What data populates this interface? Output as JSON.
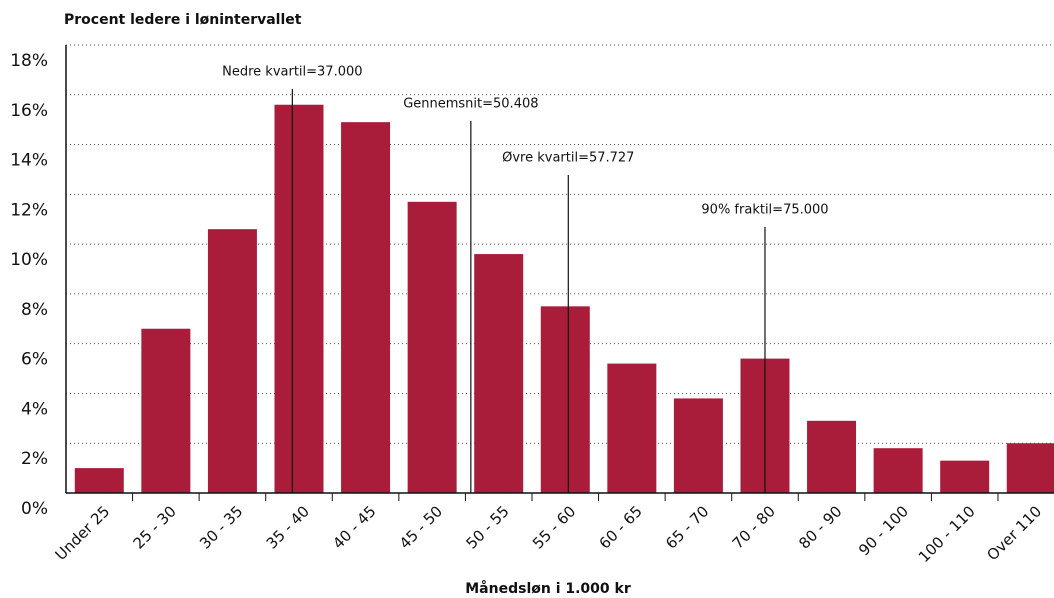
{
  "chart_data": {
    "type": "bar",
    "title": "Procent ledere i lønintervallet",
    "xlabel": "Månedsløn i  1.000 kr",
    "categories": [
      "Under 25",
      "25 - 30",
      "30 - 35",
      "35 - 40",
      "40 - 45",
      "45 - 50",
      "50 - 55",
      "55 - 60",
      "60 - 65",
      "65 - 70",
      "70 - 80",
      "80 - 90",
      "90 - 100",
      "100 - 110",
      "Over 110"
    ],
    "values": [
      1.0,
      6.6,
      10.6,
      15.6,
      14.9,
      11.7,
      9.6,
      7.5,
      5.2,
      3.8,
      5.4,
      2.9,
      1.8,
      1.3,
      2.0
    ],
    "color": "#a91d3a",
    "ylim": [
      0,
      18
    ],
    "yticks": [
      {
        "value": 0,
        "label": "0%"
      },
      {
        "value": 2,
        "label": "2%"
      },
      {
        "value": 4,
        "label": "4%"
      },
      {
        "value": 6,
        "label": "6%"
      },
      {
        "value": 8,
        "label": "8%"
      },
      {
        "value": 10,
        "label": "10%"
      },
      {
        "value": 12,
        "label": "12%"
      },
      {
        "value": 14,
        "label": "14%"
      },
      {
        "value": 16,
        "label": "16%"
      },
      {
        "value": 18,
        "label": "18%"
      }
    ],
    "grid": true,
    "annotations": [
      {
        "label": "Nedre kvartil=37.000",
        "value": 37
      },
      {
        "label": "Gennemsnit=50.408",
        "value": 50.408
      },
      {
        "label": "Øvre kvartil=57.727",
        "value": 57.727
      },
      {
        "label": "90% fraktil=75.000",
        "value": 75
      }
    ]
  }
}
